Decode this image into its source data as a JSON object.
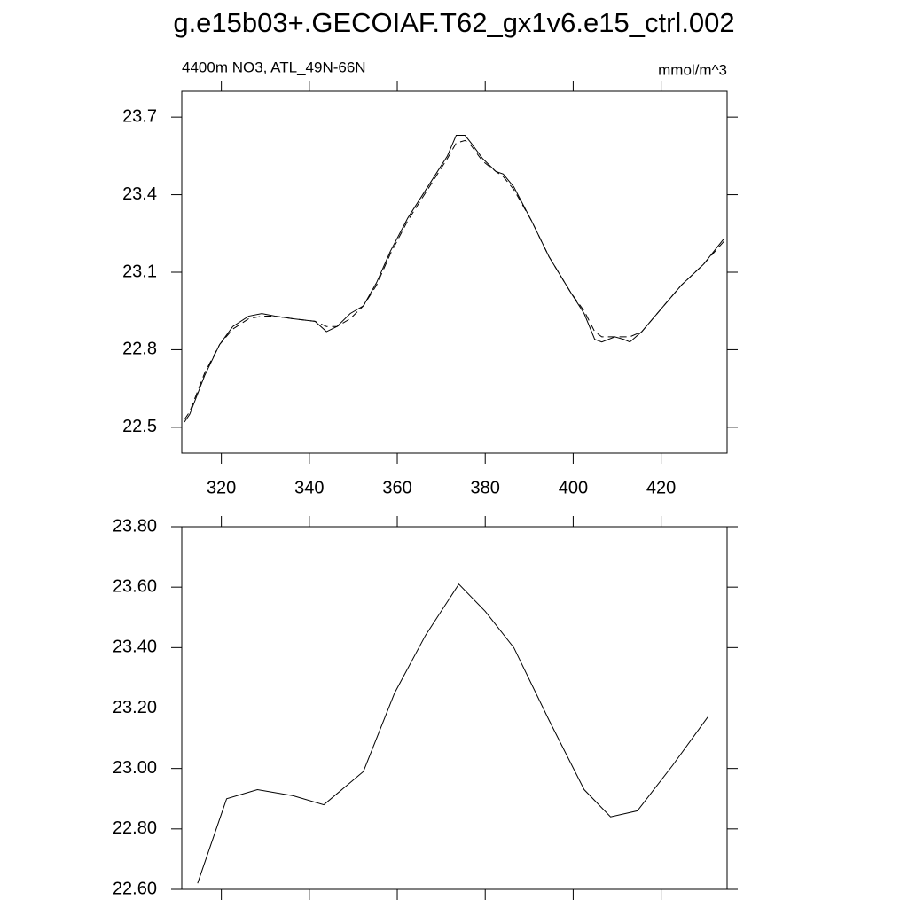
{
  "chart_data": [
    {
      "type": "line",
      "title": "g.e15b03+.GECOIAF.T62_gx1v6.e15_ctrl.002",
      "subtitle": "4400m NO3, ATL_49N-66N",
      "units": "mmol/m^3",
      "xlim": [
        311,
        435
      ],
      "xticks": [
        320,
        340,
        360,
        380,
        400,
        420
      ],
      "xtick_labels": true,
      "ylim": [
        22.4,
        23.8
      ],
      "yticks": [
        22.5,
        22.8,
        23.1,
        23.4,
        23.7
      ],
      "x": [
        311.6,
        312.8,
        316.2,
        319.6,
        322.6,
        326.2,
        329.2,
        332.2,
        336.3,
        341.3,
        343.9,
        346.3,
        349.3,
        352.3,
        355.3,
        358.4,
        362.4,
        368.4,
        371.4,
        373.4,
        375.4,
        376.8,
        379.4,
        382.4,
        384.1,
        386.5,
        390.5,
        394.5,
        399.5,
        402.5,
        404.9,
        406.5,
        409.5,
        411.5,
        412.9,
        415.6,
        419.6,
        424.6,
        429.6,
        434.3
      ],
      "series": [
        {
          "color": "#000000",
          "line_style": "solid",
          "values": [
            22.52,
            22.55,
            22.7,
            22.82,
            22.89,
            22.93,
            22.94,
            22.93,
            22.92,
            22.91,
            22.87,
            22.89,
            22.94,
            22.97,
            23.06,
            23.18,
            23.31,
            23.47,
            23.55,
            23.63,
            23.63,
            23.6,
            23.54,
            23.49,
            23.48,
            23.43,
            23.3,
            23.16,
            23.02,
            22.94,
            22.84,
            22.83,
            22.85,
            22.84,
            22.83,
            22.87,
            22.95,
            23.05,
            23.13,
            23.23
          ]
        },
        {
          "color": "#000000",
          "line_style": "dashed",
          "values": [
            22.53,
            22.56,
            22.71,
            22.82,
            22.88,
            22.92,
            22.93,
            22.93,
            22.92,
            22.91,
            22.89,
            22.89,
            22.92,
            22.97,
            23.05,
            23.17,
            23.3,
            23.46,
            23.54,
            23.6,
            23.61,
            23.59,
            23.53,
            23.49,
            23.47,
            23.42,
            23.3,
            23.16,
            23.02,
            22.95,
            22.87,
            22.85,
            22.85,
            22.85,
            22.85,
            22.87,
            22.95,
            23.05,
            23.13,
            23.22
          ]
        }
      ]
    },
    {
      "type": "line",
      "xlim": [
        311,
        435
      ],
      "xticks": [
        320,
        340,
        360,
        380,
        400,
        420
      ],
      "xtick_labels": false,
      "ylim": [
        22.6,
        23.8
      ],
      "yticks": [
        {
          "value": 22.6,
          "label": "22.60"
        },
        {
          "value": 22.8,
          "label": "22.80"
        },
        {
          "value": 23.0,
          "label": "23.00"
        },
        {
          "value": 23.2,
          "label": "23.20"
        },
        {
          "value": 23.4,
          "label": "23.40"
        },
        {
          "value": 23.6,
          "label": "23.60"
        },
        {
          "value": 23.8,
          "label": "23.80"
        }
      ],
      "x": [
        314.6,
        321.2,
        328.2,
        336.3,
        343.3,
        352.3,
        359.4,
        366.4,
        374.0,
        380.0,
        386.5,
        394.5,
        402.5,
        408.5,
        414.6,
        422.6,
        430.6
      ],
      "series": [
        {
          "color": "#000000",
          "line_style": "solid",
          "values": [
            22.62,
            22.9,
            22.93,
            22.91,
            22.88,
            22.99,
            23.25,
            23.44,
            23.61,
            23.52,
            23.4,
            23.16,
            22.93,
            22.84,
            22.86,
            23.01,
            23.17
          ]
        }
      ]
    }
  ]
}
